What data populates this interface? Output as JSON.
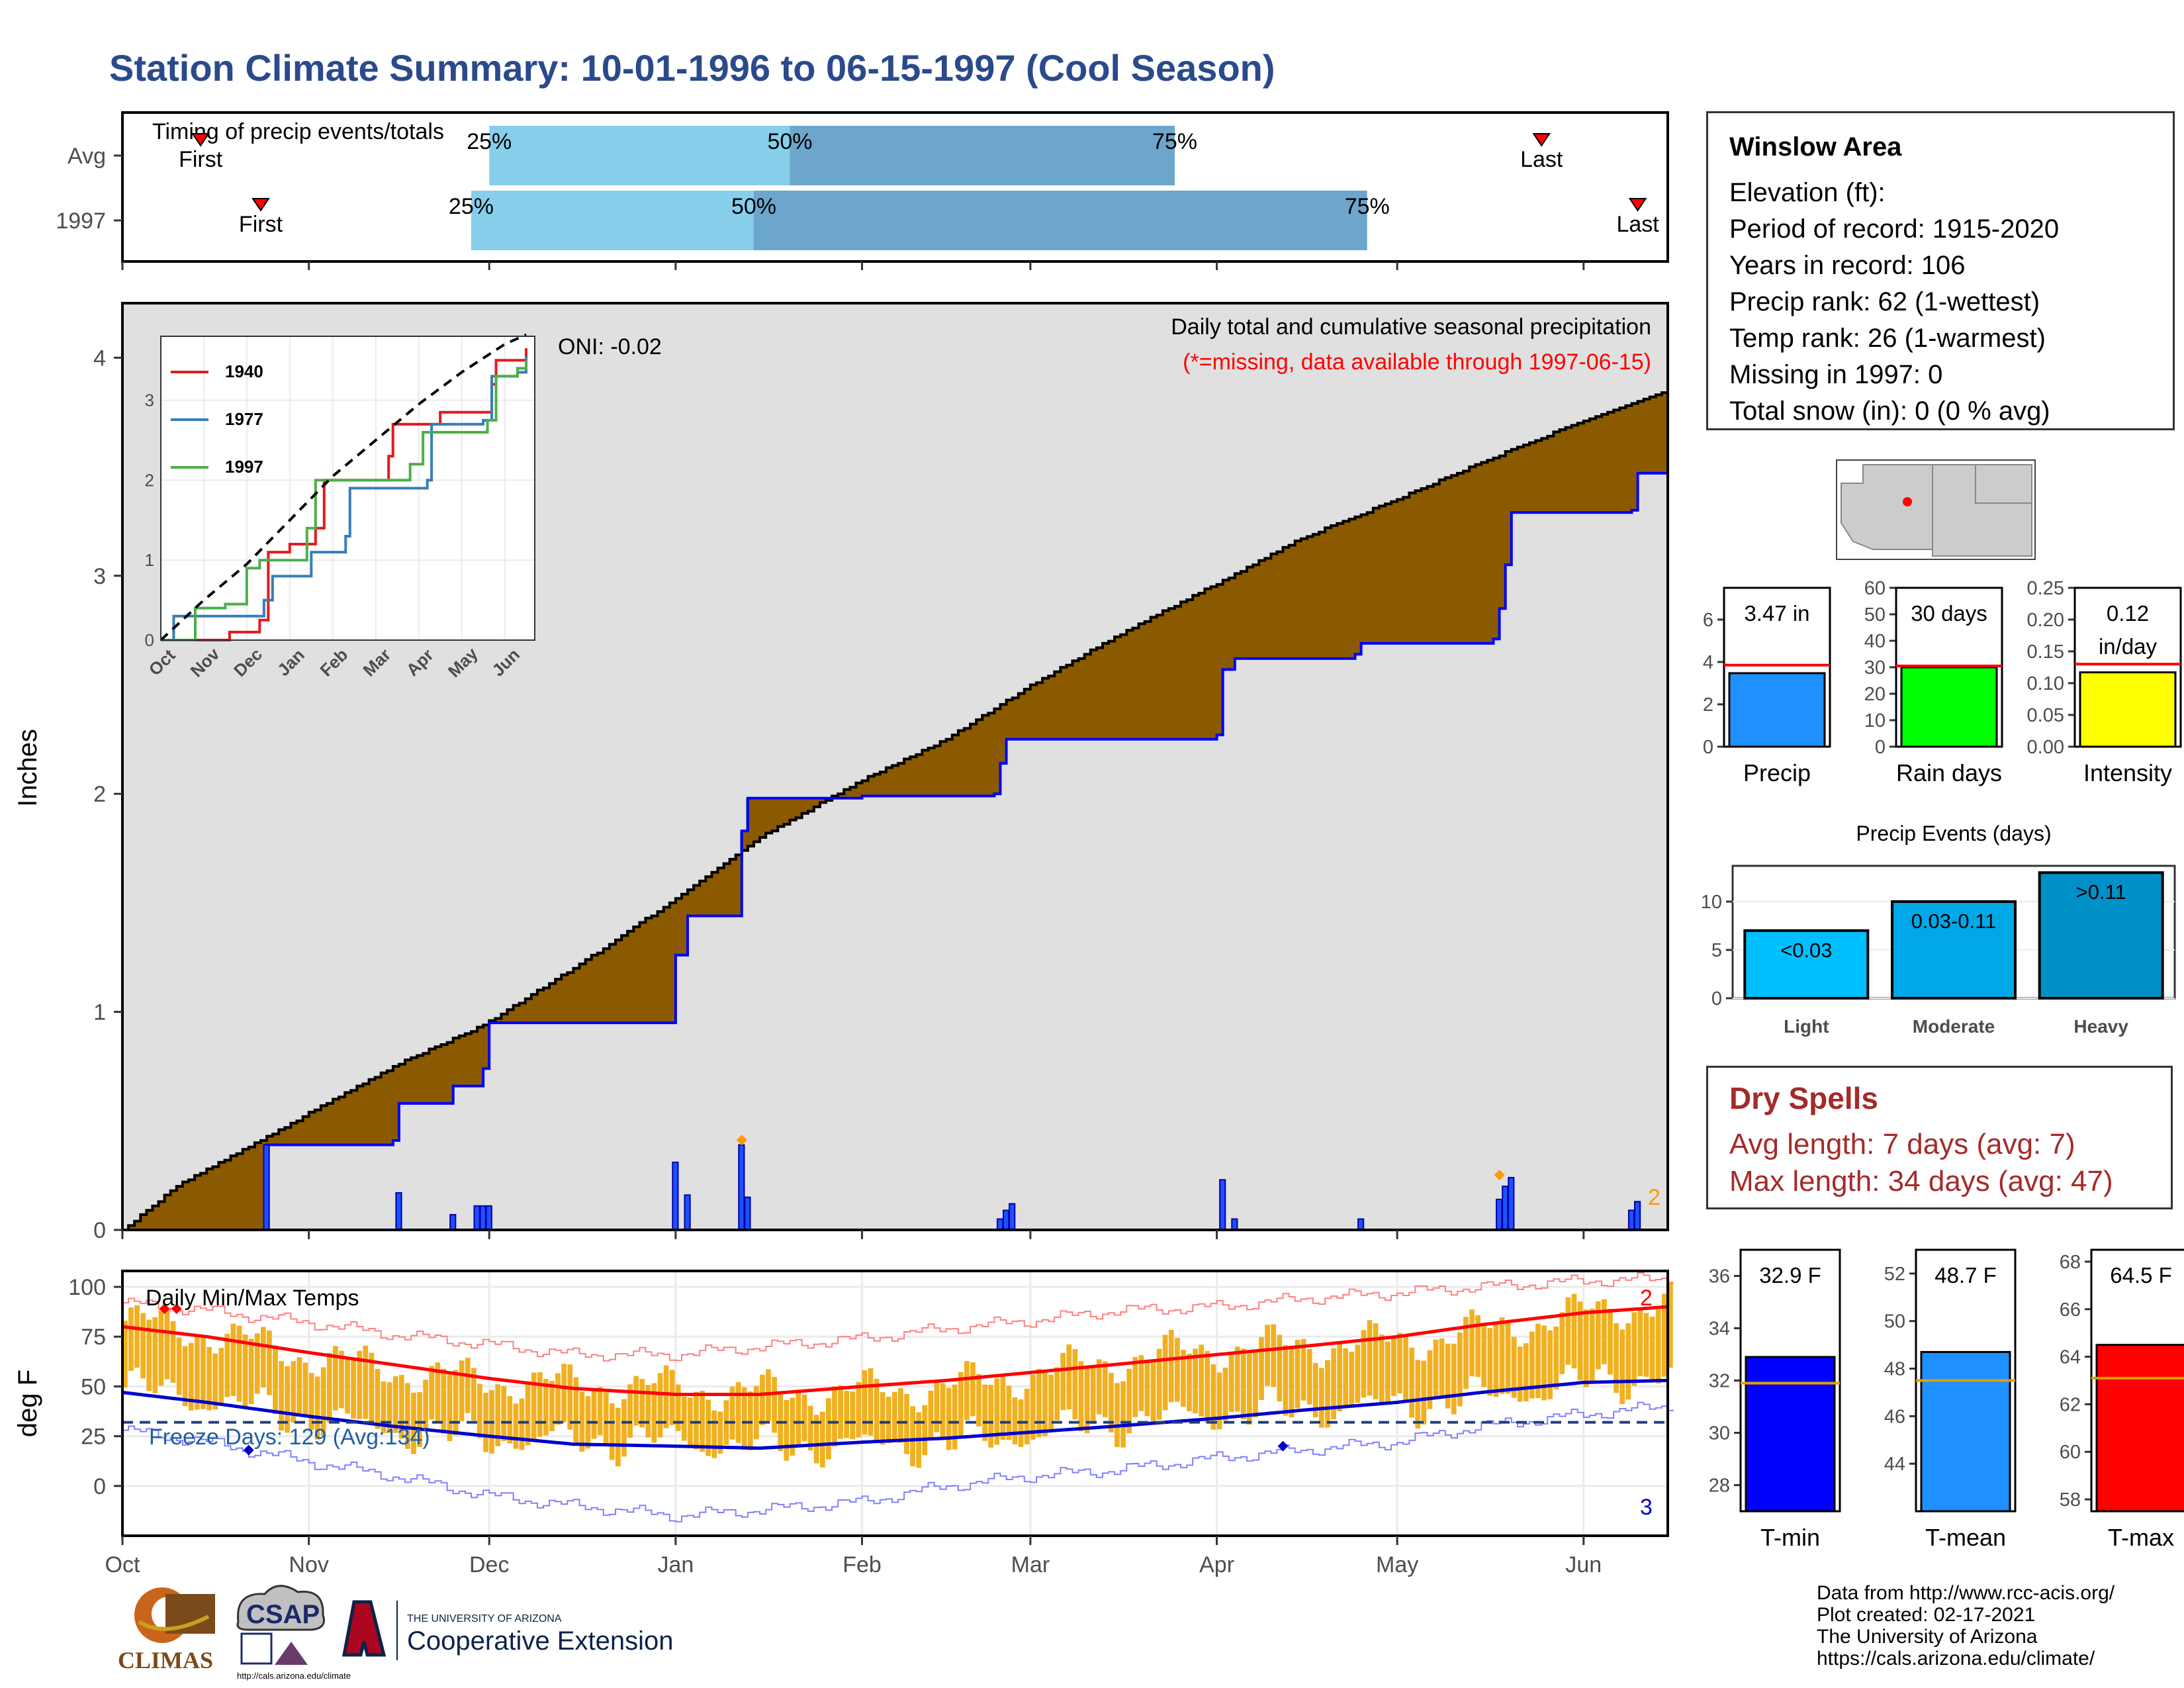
{
  "title": "Station Climate Summary: 10-01-1996 to 06-15-1997 (Cool Season)",
  "timing": {
    "title": "Timing of precip events/totals",
    "rows": [
      {
        "label": "Avg",
        "first_label": "First",
        "last_label": "Last",
        "p25": "25%",
        "p50": "50%",
        "p75": "75%",
        "first_date": "1996-10-14",
        "p25_date": "1996-12-01",
        "p50_date": "1997-01-20",
        "p75_date": "1997-03-25",
        "last_date": "1997-05-25"
      },
      {
        "label": "1997",
        "first_label": "First",
        "last_label": "Last",
        "p25": "25%",
        "p50": "50%",
        "p75": "75%",
        "first_date": "1996-10-24",
        "p25_date": "1996-11-28",
        "p50_date": "1997-01-14",
        "p75_date": "1997-04-26",
        "last_date": "1997-06-10"
      }
    ]
  },
  "station": {
    "name": "Winslow Area",
    "lines": [
      "Elevation (ft):",
      "Period of record: 1915-2020",
      "Years in record: 106",
      "Precip rank: 62 (1-wettest)",
      "Temp rank: 26 (1-warmest)",
      "Missing in 1997: 0",
      "Total snow (in): 0 (0 % avg)"
    ]
  },
  "dry_spells": {
    "title": "Dry Spells",
    "avg_line": "Avg length: 7 days (avg: 7)",
    "max_line": "Max length: 34 days (avg: 47)"
  },
  "footer": {
    "lines": [
      "Data from http://www.rcc-acis.org/",
      "Plot created: 02-17-2021",
      "The University of Arizona",
      "https://cals.arizona.edu/climate/"
    ]
  },
  "logos": {
    "climas": "CLIMAS",
    "csap": "CSAP",
    "csap_url": "http://cals.arizona.edu/climate",
    "ua_small": "THE UNIVERSITY OF ARIZONA",
    "ua_big": "Cooperative Extension"
  },
  "colors": {
    "deficit": "#8b5a00",
    "surplus": "#1a8a1a",
    "normal_fill": "#e0e0e0",
    "observed": "#0000ff",
    "temp_bar": "#f0b020",
    "temp_max_avg": "#ff0000",
    "temp_min_avg": "#0000cc",
    "q_light": "#87ceeb",
    "q_dark": "#6ca6cd"
  },
  "chart_data": [
    {
      "type": "area",
      "name": "main-precip",
      "annotation": "Daily total and cumulative seasonal precipitation",
      "missing_note": "(*=missing, data available through 1997-06-15)",
      "oni": "ONI: -0.02",
      "ylabel": "Inches",
      "ylim": [
        0,
        4.25
      ],
      "yticks": [
        0,
        1,
        2,
        3,
        4
      ],
      "x_start": "1996-10-01",
      "x_end": "1997-06-15",
      "xticks": [
        "Oct",
        "Nov",
        "Dec",
        "Jan",
        "Feb",
        "Mar",
        "Apr",
        "May",
        "Jun"
      ],
      "corner_count": "2",
      "avg_cumulative": [
        [
          "1996-10-01",
          0.0
        ],
        [
          "1996-10-10",
          0.2
        ],
        [
          "1996-10-20",
          0.35
        ],
        [
          "1996-10-31",
          0.52
        ],
        [
          "1996-11-15",
          0.75
        ],
        [
          "1996-11-30",
          0.94
        ],
        [
          "1996-12-15",
          1.2
        ],
        [
          "1996-12-31",
          1.5
        ],
        [
          "1997-01-15",
          1.8
        ],
        [
          "1997-01-31",
          2.05
        ],
        [
          "1997-02-15",
          2.25
        ],
        [
          "1997-02-28",
          2.48
        ],
        [
          "1997-03-15",
          2.72
        ],
        [
          "1997-03-31",
          2.95
        ],
        [
          "1997-04-15",
          3.17
        ],
        [
          "1997-04-30",
          3.34
        ],
        [
          "1997-05-15",
          3.52
        ],
        [
          "1997-05-31",
          3.7
        ],
        [
          "1997-06-15",
          3.85
        ]
      ],
      "observed_cumulative": [
        [
          "1996-10-01",
          0.0
        ],
        [
          "1996-10-24",
          0.0
        ],
        [
          "1996-10-25",
          0.39
        ],
        [
          "1996-11-01",
          0.39
        ],
        [
          "1996-11-15",
          0.41
        ],
        [
          "1996-11-16",
          0.58
        ],
        [
          "1996-11-24",
          0.58
        ],
        [
          "1996-11-25",
          0.66
        ],
        [
          "1996-11-29",
          0.66
        ],
        [
          "1996-11-30",
          0.74
        ],
        [
          "1996-12-01",
          0.95
        ],
        [
          "1996-12-31",
          0.95
        ],
        [
          "1997-01-01",
          1.26
        ],
        [
          "1997-01-03",
          1.44
        ],
        [
          "1997-01-11",
          1.44
        ],
        [
          "1997-01-12",
          1.83
        ],
        [
          "1997-01-13",
          1.98
        ],
        [
          "1997-02-01",
          1.99
        ],
        [
          "1997-02-23",
          2.0
        ],
        [
          "1997-02-24",
          2.14
        ],
        [
          "1997-02-25",
          2.25
        ],
        [
          "1997-04-01",
          2.27
        ],
        [
          "1997-04-02",
          2.57
        ],
        [
          "1997-04-04",
          2.62
        ],
        [
          "1997-04-24",
          2.64
        ],
        [
          "1997-04-25",
          2.69
        ],
        [
          "1997-05-17",
          2.71
        ],
        [
          "1997-05-18",
          2.85
        ],
        [
          "1997-05-19",
          3.05
        ],
        [
          "1997-05-20",
          3.29
        ],
        [
          "1997-06-09",
          3.3
        ],
        [
          "1997-06-10",
          3.47
        ],
        [
          "1997-06-15",
          3.47
        ]
      ],
      "daily_bars": [
        [
          "1996-10-25",
          0.39
        ],
        [
          "1996-11-16",
          0.17
        ],
        [
          "1996-11-25",
          0.07
        ],
        [
          "1996-11-29",
          0.11
        ],
        [
          "1996-11-30",
          0.11
        ],
        [
          "1996-12-01",
          0.11
        ],
        [
          "1997-01-01",
          0.31
        ],
        [
          "1997-01-03",
          0.16
        ],
        [
          "1997-01-12",
          0.39
        ],
        [
          "1997-01-13",
          0.15
        ],
        [
          "1997-02-24",
          0.05
        ],
        [
          "1997-02-25",
          0.09
        ],
        [
          "1997-02-26",
          0.12
        ],
        [
          "1997-04-02",
          0.23
        ],
        [
          "1997-04-04",
          0.05
        ],
        [
          "1997-04-25",
          0.05
        ],
        [
          "1997-05-18",
          0.14
        ],
        [
          "1997-05-19",
          0.2
        ],
        [
          "1997-05-20",
          0.24
        ],
        [
          "1997-06-09",
          0.09
        ],
        [
          "1997-06-10",
          0.13
        ]
      ],
      "snow_markers": [
        [
          "1997-01-12",
          0.4
        ],
        [
          "1997-05-18",
          0.24
        ]
      ]
    },
    {
      "type": "line",
      "name": "inset-analogs",
      "ylim": [
        0,
        3.8
      ],
      "yticks": [
        0,
        1,
        2,
        3
      ],
      "xticks": [
        "Oct",
        "Nov",
        "Dec",
        "Jan",
        "Feb",
        "Mar",
        "Apr",
        "May",
        "Jun"
      ],
      "series": [
        {
          "name": "1940",
          "color": "#e41a1c",
          "points": [
            [
              0,
              0
            ],
            [
              1.5,
              0
            ],
            [
              1.6,
              0.1
            ],
            [
              2.3,
              0.25
            ],
            [
              2.5,
              1.1
            ],
            [
              3,
              1.2
            ],
            [
              3.6,
              1.4
            ],
            [
              3.8,
              2.0
            ],
            [
              5.3,
              2.3
            ],
            [
              5.4,
              2.7
            ],
            [
              6.5,
              2.85
            ],
            [
              7.7,
              3.2
            ],
            [
              7.8,
              3.5
            ],
            [
              8.5,
              3.65
            ]
          ]
        },
        {
          "name": "1977",
          "color": "#377eb8",
          "points": [
            [
              0,
              0
            ],
            [
              0.3,
              0.3
            ],
            [
              2.4,
              0.5
            ],
            [
              2.6,
              0.8
            ],
            [
              3.4,
              0.8
            ],
            [
              3.5,
              1.1
            ],
            [
              4.3,
              1.3
            ],
            [
              4.4,
              1.9
            ],
            [
              6.2,
              2.0
            ],
            [
              6.3,
              2.7
            ],
            [
              7.5,
              2.75
            ],
            [
              7.7,
              3.3
            ],
            [
              8.3,
              3.35
            ],
            [
              8.5,
              3.55
            ]
          ]
        },
        {
          "name": "1997",
          "color": "#4daf4a",
          "points": [
            [
              0,
              0
            ],
            [
              0.8,
              0.4
            ],
            [
              1.5,
              0.45
            ],
            [
              2.0,
              0.9
            ],
            [
              2.3,
              1.0
            ],
            [
              3.3,
              1.0
            ],
            [
              3.4,
              1.4
            ],
            [
              3.6,
              2.0
            ],
            [
              5.8,
              2.2
            ],
            [
              6.1,
              2.6
            ],
            [
              7.6,
              2.75
            ],
            [
              7.8,
              3.3
            ],
            [
              8.3,
              3.4
            ],
            [
              8.5,
              3.5
            ]
          ]
        },
        {
          "name": "",
          "color": "#000000",
          "points": [
            [
              0,
              0
            ],
            [
              1,
              0.5
            ],
            [
              2,
              0.95
            ],
            [
              3,
              1.5
            ],
            [
              4,
              2.05
            ],
            [
              5,
              2.5
            ],
            [
              6,
              2.95
            ],
            [
              7,
              3.35
            ],
            [
              8,
              3.7
            ],
            [
              8.5,
              3.82
            ]
          ]
        }
      ]
    },
    {
      "type": "bar",
      "name": "precip-total",
      "categories": [
        "Precip"
      ],
      "value_label": "3.47 in",
      "values": [
        3.47
      ],
      "avg": 3.85,
      "ylim": [
        0,
        7.5
      ],
      "yticks": [
        0,
        2,
        4,
        6
      ],
      "color": "#1e90ff"
    },
    {
      "type": "bar",
      "name": "rain-days",
      "categories": [
        "Rain days"
      ],
      "value_label": "30 days",
      "values": [
        30
      ],
      "avg": 30.5,
      "ylim": [
        0,
        60
      ],
      "yticks": [
        0,
        10,
        20,
        30,
        40,
        50,
        60
      ],
      "color": "#00ff00"
    },
    {
      "type": "bar",
      "name": "intensity",
      "categories": [
        "Intensity"
      ],
      "value_label": "0.12",
      "unit_label": "in/day",
      "values": [
        0.117
      ],
      "avg": 0.13,
      "ylim": [
        0,
        0.25
      ],
      "yticks": [
        "0.00",
        "0.05",
        "0.10",
        "0.15",
        "0.20",
        "0.25"
      ],
      "color": "#ffff00"
    },
    {
      "type": "bar",
      "name": "precip-events",
      "title": "Precip Events (days)",
      "categories": [
        "Light",
        "Moderate",
        "Heavy"
      ],
      "bar_labels": [
        "<0.03",
        "0.03-0.11",
        ">0.11"
      ],
      "values": [
        7,
        10,
        13
      ],
      "ylim": [
        0,
        13.7
      ],
      "yticks": [
        0,
        5,
        10
      ],
      "colors": [
        "#00bfff",
        "#00a8e8",
        "#0090c8"
      ]
    },
    {
      "type": "line",
      "name": "daily-temps",
      "title": "Daily Min/Max Temps",
      "ylabel": "deg F",
      "ylim": [
        -25,
        108
      ],
      "yticks": [
        0,
        25,
        50,
        75,
        100
      ],
      "freeze_line": 32,
      "freeze_label": "Freeze Days: 129 (Avg:134)",
      "count_top": "2",
      "count_bottom": "3",
      "avg_max": [
        [
          "1996-10-01",
          80
        ],
        [
          "1996-10-15",
          75
        ],
        [
          "1996-11-01",
          67
        ],
        [
          "1996-11-15",
          61
        ],
        [
          "1996-12-01",
          54
        ],
        [
          "1996-12-15",
          49
        ],
        [
          "1997-01-01",
          46
        ],
        [
          "1997-01-15",
          46
        ],
        [
          "1997-02-01",
          50
        ],
        [
          "1997-02-15",
          53
        ],
        [
          "1997-03-01",
          57
        ],
        [
          "1997-03-15",
          61
        ],
        [
          "1997-04-01",
          66
        ],
        [
          "1997-04-15",
          70
        ],
        [
          "1997-05-01",
          75
        ],
        [
          "1997-05-15",
          81
        ],
        [
          "1997-06-01",
          87
        ],
        [
          "1997-06-15",
          90
        ]
      ],
      "avg_min": [
        [
          "1996-10-01",
          47
        ],
        [
          "1996-10-15",
          42
        ],
        [
          "1996-11-01",
          35
        ],
        [
          "1996-11-15",
          30
        ],
        [
          "1996-12-01",
          25
        ],
        [
          "1996-12-15",
          21
        ],
        [
          "1997-01-01",
          20
        ],
        [
          "1997-01-15",
          19
        ],
        [
          "1997-02-01",
          22
        ],
        [
          "1997-02-15",
          24
        ],
        [
          "1997-03-01",
          27
        ],
        [
          "1997-03-15",
          30
        ],
        [
          "1997-04-01",
          34
        ],
        [
          "1997-04-15",
          38
        ],
        [
          "1997-05-01",
          42
        ],
        [
          "1997-05-15",
          47
        ],
        [
          "1997-06-01",
          52
        ],
        [
          "1997-06-15",
          53
        ]
      ],
      "record_max": [
        [
          "1996-10-01",
          92
        ],
        [
          "1996-10-15",
          88
        ],
        [
          "1996-11-01",
          82
        ],
        [
          "1996-11-15",
          76
        ],
        [
          "1996-12-01",
          71
        ],
        [
          "1996-12-15",
          66
        ],
        [
          "1997-01-01",
          66
        ],
        [
          "1997-01-15",
          70
        ],
        [
          "1997-02-01",
          74
        ],
        [
          "1997-02-15",
          79
        ],
        [
          "1997-03-01",
          83
        ],
        [
          "1997-03-15",
          88
        ],
        [
          "1997-04-01",
          90
        ],
        [
          "1997-04-15",
          94
        ],
        [
          "1997-05-01",
          97
        ],
        [
          "1997-05-15",
          100
        ],
        [
          "1997-06-01",
          103
        ],
        [
          "1997-06-15",
          104
        ]
      ],
      "record_min": [
        [
          "1996-10-01",
          28
        ],
        [
          "1996-10-15",
          22
        ],
        [
          "1996-11-01",
          12
        ],
        [
          "1996-11-15",
          5
        ],
        [
          "1996-12-01",
          -5
        ],
        [
          "1996-12-15",
          -10
        ],
        [
          "1997-01-01",
          -15
        ],
        [
          "1997-01-15",
          -12
        ],
        [
          "1997-02-01",
          -8
        ],
        [
          "1997-02-15",
          0
        ],
        [
          "1997-03-01",
          5
        ],
        [
          "1997-03-15",
          8
        ],
        [
          "1997-04-01",
          14
        ],
        [
          "1997-04-15",
          18
        ],
        [
          "1997-05-01",
          22
        ],
        [
          "1997-05-15",
          30
        ],
        [
          "1997-06-01",
          36
        ],
        [
          "1997-06-15",
          40
        ]
      ],
      "record_markers": [
        [
          "1996-10-08",
          89
        ],
        [
          "1996-10-10",
          89
        ],
        [
          "1996-10-22",
          18
        ],
        [
          "1997-04-12",
          20
        ]
      ]
    },
    {
      "type": "bar",
      "name": "tmin",
      "categories": [
        "T-min"
      ],
      "value_label": "32.9 F",
      "values": [
        32.9
      ],
      "avg": 31.9,
      "ylim": [
        27,
        37
      ],
      "yticks": [
        28,
        30,
        32,
        34,
        36
      ],
      "color": "#0000ff"
    },
    {
      "type": "bar",
      "name": "tmean",
      "categories": [
        "T-mean"
      ],
      "value_label": "48.7 F",
      "values": [
        48.7
      ],
      "avg": 47.5,
      "ylim": [
        42,
        53
      ],
      "yticks": [
        44,
        46,
        48,
        50,
        52
      ],
      "color": "#1e90ff"
    },
    {
      "type": "bar",
      "name": "tmax",
      "categories": [
        "T-max"
      ],
      "value_label": "64.5 F",
      "values": [
        64.5
      ],
      "avg": 63.1,
      "ylim": [
        57.5,
        68.5
      ],
      "yticks": [
        58,
        60,
        62,
        64,
        66,
        68
      ],
      "color": "#ff0000"
    }
  ]
}
